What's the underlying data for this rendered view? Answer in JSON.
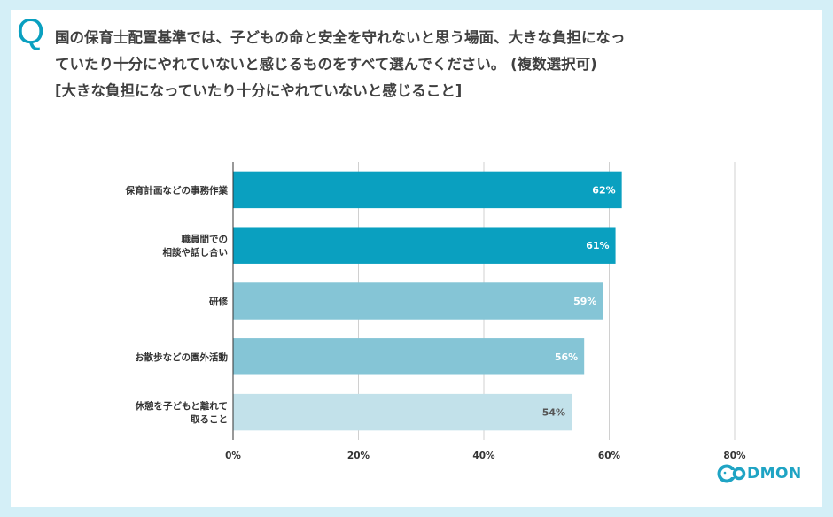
{
  "question": {
    "mark": "Q",
    "lines": [
      "国の保育士配置基準では、子どもの命と安全を守れないと思う場面、大きな負担になっ",
      "ていたり十分にやれていないと感じるものをすべて選んでください。 (複数選択可)",
      "[大きな負担になっていたり十分にやれていないと感じること]"
    ]
  },
  "chart_data": {
    "type": "bar",
    "orientation": "horizontal",
    "categories": [
      [
        "保育計画などの事務作業"
      ],
      [
        "職員間での",
        "相談や話し合い"
      ],
      [
        "研修"
      ],
      [
        "お散歩などの園外活動"
      ],
      [
        "休憩を子どもと離れて",
        "取ること"
      ]
    ],
    "values": [
      62,
      61,
      59,
      56,
      54
    ],
    "value_labels": [
      "62%",
      "61%",
      "59%",
      "56%",
      "54%"
    ],
    "bar_colors": [
      "#0aa0c0",
      "#0aa0c0",
      "#85c5d6",
      "#85c5d6",
      "#c2e1ea"
    ],
    "label_colors": [
      "#ffffff",
      "#ffffff",
      "#ffffff",
      "#ffffff",
      "#555555"
    ],
    "xlim": [
      0,
      80
    ],
    "xticks": [
      "0%",
      "20%",
      "40%",
      "60%",
      "80%"
    ],
    "xtick_values": [
      0,
      20,
      40,
      60,
      80
    ],
    "grid": true,
    "xlabel": "",
    "ylabel": ""
  },
  "logo": {
    "text": "DMON",
    "color": "#1fa4c4"
  }
}
